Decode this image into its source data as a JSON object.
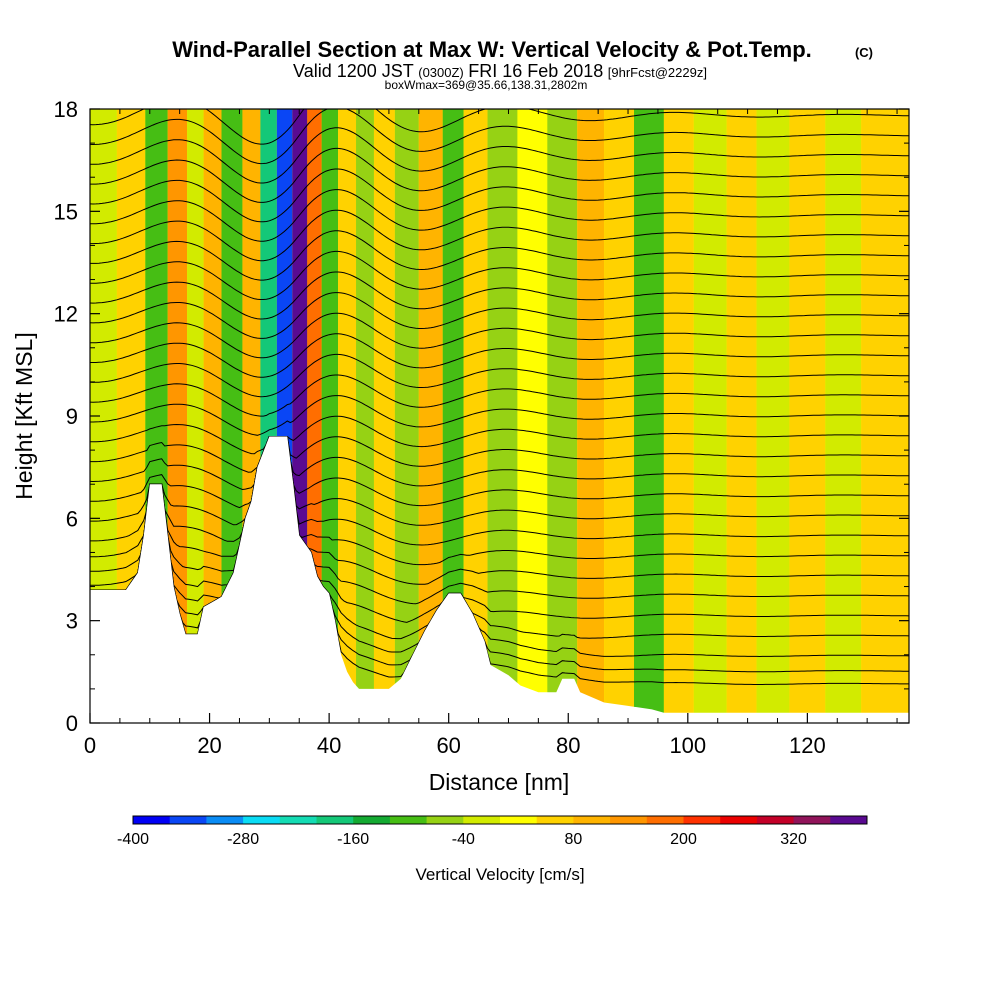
{
  "header": {
    "title": "Wind-Parallel Section at Max W: Vertical Velocity & Pot.Temp.",
    "title_badge": "(C)",
    "valid_prefix": "Valid 1200 JST",
    "valid_utc": "(0300Z)",
    "valid_date": "FRI 16 Feb 2018",
    "forecast_tag": "[9hrFcst@2229z]",
    "box_info": "boxWmax=369@35.66,138.31,2802m"
  },
  "chart_data": {
    "type": "heatmap",
    "xlabel": "Distance [nm]",
    "ylabel": "Height [Kft MSL]",
    "xlim": [
      0,
      137
    ],
    "ylim": [
      0,
      18
    ],
    "x_ticks": [
      0,
      20,
      40,
      60,
      80,
      100,
      120
    ],
    "y_ticks": [
      0,
      3,
      6,
      9,
      12,
      15,
      18
    ],
    "x_tick_labels": [
      "0",
      "20",
      "40",
      "60",
      "80",
      "100",
      "120"
    ],
    "y_tick_labels": [
      "0",
      "3",
      "6",
      "9",
      "12",
      "15",
      "18"
    ],
    "terrain_kft": [
      [
        0,
        3.9
      ],
      [
        6,
        3.9
      ],
      [
        8,
        4.4
      ],
      [
        9,
        5.5
      ],
      [
        10,
        7.0
      ],
      [
        12,
        7.0
      ],
      [
        13,
        5.5
      ],
      [
        14,
        4.0
      ],
      [
        15,
        3.2
      ],
      [
        16,
        2.6
      ],
      [
        18,
        2.6
      ],
      [
        19,
        3.4
      ],
      [
        21,
        3.6
      ],
      [
        22,
        3.7
      ],
      [
        24,
        4.4
      ],
      [
        25,
        5.2
      ],
      [
        26,
        6.0
      ],
      [
        27,
        6.5
      ],
      [
        28,
        7.5
      ],
      [
        30,
        8.4
      ],
      [
        33,
        8.4
      ],
      [
        34,
        7.0
      ],
      [
        35,
        5.5
      ],
      [
        37,
        5.0
      ],
      [
        38,
        4.3
      ],
      [
        39,
        4.0
      ],
      [
        40,
        3.8
      ],
      [
        41,
        3.0
      ],
      [
        42,
        2.0
      ],
      [
        43,
        1.5
      ],
      [
        44,
        1.2
      ],
      [
        45,
        1.0
      ],
      [
        50,
        1.0
      ],
      [
        52,
        1.3
      ],
      [
        54,
        2.0
      ],
      [
        56,
        2.7
      ],
      [
        58,
        3.3
      ],
      [
        60,
        3.8
      ],
      [
        62,
        3.8
      ],
      [
        64,
        3.2
      ],
      [
        66,
        2.4
      ],
      [
        67,
        1.7
      ],
      [
        68,
        1.6
      ],
      [
        70,
        1.4
      ],
      [
        72,
        1.1
      ],
      [
        75,
        0.9
      ],
      [
        78,
        0.9
      ],
      [
        79,
        1.3
      ],
      [
        81,
        1.3
      ],
      [
        82,
        0.9
      ],
      [
        86,
        0.6
      ],
      [
        90,
        0.5
      ],
      [
        94,
        0.4
      ],
      [
        96,
        0.3
      ],
      [
        137,
        0.3
      ]
    ],
    "w_cm_s": [
      [
        [
          -140,
          -100
        ],
        [
          -60,
          -20
        ],
        [
          -20,
          20
        ],
        [
          20,
          60
        ],
        [
          60,
          100
        ]
      ],
      [
        [
          -80,
          -20
        ],
        [
          -20,
          20
        ],
        [
          20,
          60
        ],
        [
          60,
          100
        ],
        [
          100,
          140
        ]
      ]
    ],
    "w_bands": [
      {
        "x": 2,
        "w": -40
      },
      {
        "x": 7,
        "w": 40
      },
      {
        "x": 11.5,
        "w": -120
      },
      {
        "x": 14.5,
        "w": 120
      },
      {
        "x": 18,
        "w": -20
      },
      {
        "x": 20,
        "w": 80
      },
      {
        "x": 24,
        "w": -100
      },
      {
        "x": 27,
        "w": 80
      },
      {
        "x": 30,
        "w": -200
      },
      {
        "x": 32.5,
        "w": -360
      },
      {
        "x": 35.2,
        "w": 369
      },
      {
        "x": 37.5,
        "w": 160
      },
      {
        "x": 40,
        "w": -120
      },
      {
        "x": 43,
        "w": 40
      },
      {
        "x": 46,
        "w": -80
      },
      {
        "x": 49,
        "w": 40
      },
      {
        "x": 53,
        "w": -60
      },
      {
        "x": 57,
        "w": 80
      },
      {
        "x": 61,
        "w": -100
      },
      {
        "x": 64,
        "w": 60
      },
      {
        "x": 69,
        "w": -60
      },
      {
        "x": 74,
        "w": 20
      },
      {
        "x": 79,
        "w": -60
      },
      {
        "x": 84,
        "w": 100
      },
      {
        "x": 88,
        "w": 60
      },
      {
        "x": 94,
        "w": -100
      },
      {
        "x": 98,
        "w": 40
      },
      {
        "x": 104,
        "w": -40
      },
      {
        "x": 109,
        "w": 60
      },
      {
        "x": 114,
        "w": -40
      },
      {
        "x": 120,
        "w": 40
      },
      {
        "x": 126,
        "w": -40
      },
      {
        "x": 132,
        "w": 40
      }
    ],
    "isentrope_count": 30,
    "colorbar": {
      "min": -400,
      "max": 400,
      "step": 40,
      "colors": [
        "#0000f5",
        "#0a46f5",
        "#0a8cf5",
        "#0adcf5",
        "#14dcb4",
        "#14c878",
        "#14aa32",
        "#46be14",
        "#96d214",
        "#d2eb00",
        "#ffff00",
        "#ffd200",
        "#ffb400",
        "#ff9600",
        "#ff6e00",
        "#ff3200",
        "#eb0000",
        "#c30028",
        "#91145a",
        "#5a0a91"
      ],
      "labels": [
        "-400",
        "-280",
        "-160",
        "-40",
        "80",
        "200",
        "320"
      ],
      "title": "Vertical Velocity [cm/s]"
    }
  }
}
